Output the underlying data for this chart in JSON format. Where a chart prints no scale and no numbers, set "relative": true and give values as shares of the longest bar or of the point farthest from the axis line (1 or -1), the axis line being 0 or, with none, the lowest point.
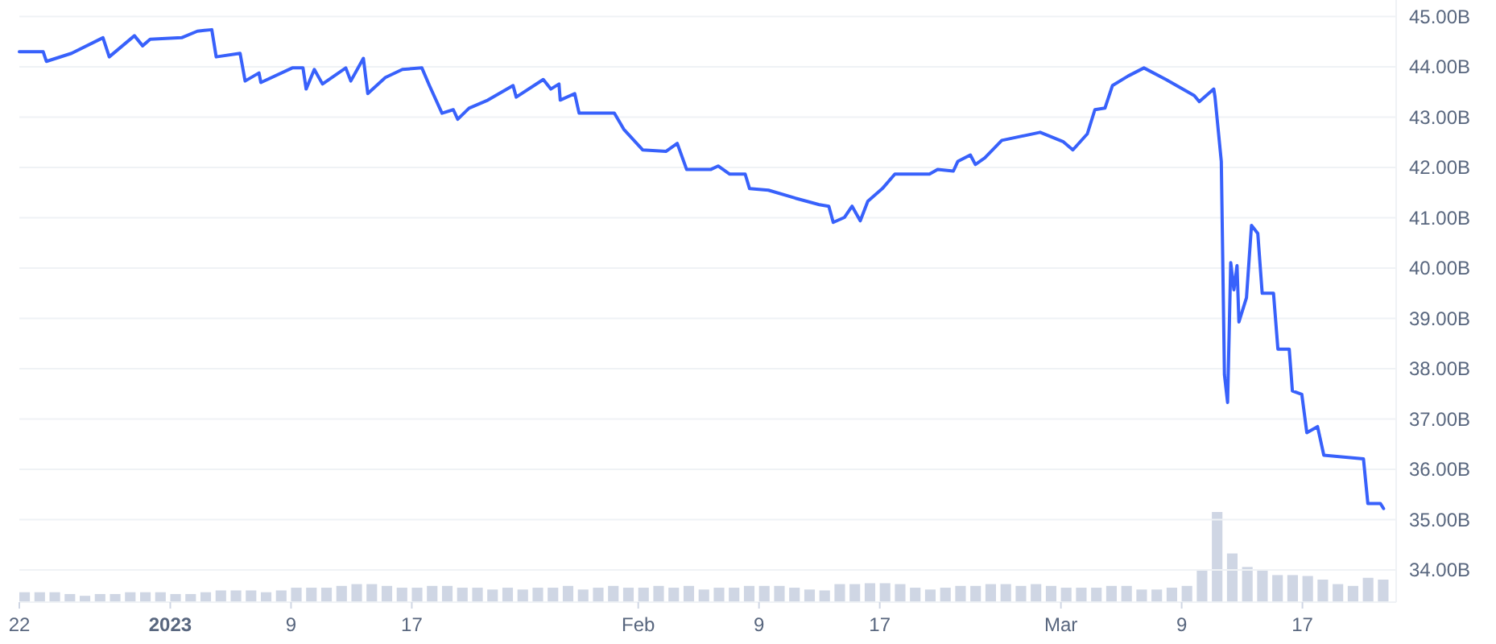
{
  "chart_data": [
    {
      "type": "line",
      "color": "#3861fb",
      "grid": "y",
      "tick_labels": "y",
      "xlim": [
        "2022-12-22T00:00",
        "2023-03-23T05:00"
      ],
      "ylim": [
        33.36,
        45.33
      ],
      "yticks": [
        {
          "value": 34,
          "label": "34.00B"
        },
        {
          "value": 35,
          "label": "35.00B"
        },
        {
          "value": 36,
          "label": "36.00B"
        },
        {
          "value": 37,
          "label": "37.00B"
        },
        {
          "value": 38,
          "label": "38.00B"
        },
        {
          "value": 39,
          "label": "39.00B"
        },
        {
          "value": 40,
          "label": "40.00B"
        },
        {
          "value": 41,
          "label": "41.00B"
        },
        {
          "value": 42,
          "label": "42.00B"
        },
        {
          "value": 43,
          "label": "43.00B"
        },
        {
          "value": 44,
          "label": "44.00B"
        },
        {
          "value": 45,
          "label": "45.00B"
        }
      ],
      "x": [
        "2022-12-22T00:00",
        "2022-12-23T14:00",
        "2022-12-23T19:00",
        "2022-12-25T11:00",
        "2022-12-27T13:00",
        "2022-12-27T23:00",
        "2022-12-29T15:00",
        "2022-12-30T04:00",
        "2022-12-30T16:00",
        "2023-01-01T18:00",
        "2023-01-02T19:00",
        "2023-01-03T18:00",
        "2023-01-04T01:00",
        "2023-01-05T15:00",
        "2023-01-05T23:00",
        "2023-01-06T21:00",
        "2023-01-07T00:00",
        "2023-01-09T02:00",
        "2023-01-09T19:00",
        "2023-01-10T00:00",
        "2023-01-10T13:00",
        "2023-01-11T02:00",
        "2023-01-12T15:00",
        "2023-01-12T23:00",
        "2023-01-13T19:00",
        "2023-01-14T02:00",
        "2023-01-15T06:00",
        "2023-01-16T09:00",
        "2023-01-17T16:00",
        "2023-01-18T04:00",
        "2023-01-19T00:00",
        "2023-01-19T18:00",
        "2023-01-20T01:00",
        "2023-01-20T19:00",
        "2023-01-22T01:00",
        "2023-01-23T17:00",
        "2023-01-23T22:00",
        "2023-01-25T17:00",
        "2023-01-26T05:00",
        "2023-01-26T18:00",
        "2023-01-26T20:00",
        "2023-01-27T19:00",
        "2023-01-28T02:00",
        "2023-01-30T10:00",
        "2023-01-31T01:00",
        "2023-02-01T07:00",
        "2023-02-02T20:00",
        "2023-02-03T14:00",
        "2023-02-04T05:00",
        "2023-02-05T19:00",
        "2023-02-06T07:00",
        "2023-02-07T01:00",
        "2023-02-08T02:00",
        "2023-02-08T09:00",
        "2023-02-09T15:00",
        "2023-02-11T10:00",
        "2023-02-13T00:00",
        "2023-02-13T15:00",
        "2023-02-13T22:00",
        "2023-02-14T16:00",
        "2023-02-15T04:00",
        "2023-02-15T17:00",
        "2023-02-16T05:00",
        "2023-02-17T04:00",
        "2023-02-18T00:00",
        "2023-02-20T07:00",
        "2023-02-20T20:00",
        "2023-02-21T21:00",
        "2023-02-22T04:00",
        "2023-02-23T00:00",
        "2023-02-23T08:00",
        "2023-02-23T23:00",
        "2023-02-25T02:00",
        "2023-02-27T15:00",
        "2023-03-01T04:00",
        "2023-03-01T19:00",
        "2023-03-02T18:00",
        "2023-03-03T06:00",
        "2023-03-03T22:00",
        "2023-03-04T10:00",
        "2023-03-05T11:00",
        "2023-03-06T12:00",
        "2023-03-07T23:00",
        "2023-03-09T20:00",
        "2023-03-10T04:00",
        "2023-03-11T03:00",
        "2023-03-11T05:00",
        "2023-03-11T15:00",
        "2023-03-11T20:00",
        "2023-03-12T01:00",
        "2023-03-12T06:00",
        "2023-03-12T11:00",
        "2023-03-12T16:00",
        "2023-03-12T19:00",
        "2023-03-13T07:00",
        "2023-03-13T15:00",
        "2023-03-14T01:00",
        "2023-03-14T08:00",
        "2023-03-15T02:00",
        "2023-03-15T09:00",
        "2023-03-16T03:00",
        "2023-03-16T08:00",
        "2023-03-16T23:00",
        "2023-03-17T07:00",
        "2023-03-18T00:00",
        "2023-03-18T10:00",
        "2023-03-21T01:00",
        "2023-03-21T08:00",
        "2023-03-22T04:00",
        "2023-03-22T09:00"
      ],
      "values": [
        44.3,
        44.3,
        44.11,
        44.27,
        44.58,
        44.2,
        44.62,
        44.42,
        44.55,
        44.58,
        44.71,
        44.74,
        44.2,
        44.27,
        43.72,
        43.88,
        43.69,
        43.98,
        43.98,
        43.56,
        43.95,
        43.66,
        43.98,
        43.72,
        44.17,
        43.47,
        43.79,
        43.95,
        43.98,
        43.63,
        43.08,
        43.15,
        42.96,
        43.18,
        43.34,
        43.63,
        43.4,
        43.75,
        43.56,
        43.66,
        43.34,
        43.47,
        43.08,
        43.08,
        42.76,
        42.35,
        42.32,
        42.48,
        41.96,
        41.96,
        42.03,
        41.87,
        41.87,
        41.58,
        41.55,
        41.39,
        41.26,
        41.23,
        40.91,
        41.01,
        41.23,
        40.94,
        41.33,
        41.58,
        41.87,
        41.87,
        41.96,
        41.93,
        42.12,
        42.25,
        42.06,
        42.19,
        42.54,
        42.7,
        42.51,
        42.35,
        42.67,
        43.15,
        43.18,
        43.63,
        43.82,
        43.98,
        43.75,
        43.43,
        43.31,
        43.56,
        43.4,
        42.12,
        37.88,
        37.33,
        40.11,
        39.57,
        40.05,
        38.93,
        39.41,
        40.85,
        40.69,
        39.5,
        39.5,
        38.39,
        38.39,
        37.56,
        37.49,
        36.73,
        36.85,
        36.28,
        36.21,
        35.32,
        35.32,
        35.22
      ]
    },
    {
      "type": "bar",
      "relative": true,
      "color": "#cfd6e4",
      "xlim": [
        "2022-12-22T00:00",
        "2023-03-23T05:00"
      ],
      "xticks": [
        {
          "value": "2022-12-22",
          "label": "22"
        },
        {
          "value": "2023-01-01",
          "label": "2023"
        },
        {
          "value": "2023-01-09",
          "label": "9"
        },
        {
          "value": "2023-01-17",
          "label": "17"
        },
        {
          "value": "2023-02-01",
          "label": "Feb"
        },
        {
          "value": "2023-02-09",
          "label": "9"
        },
        {
          "value": "2023-02-17",
          "label": "17"
        },
        {
          "value": "2023-03-01",
          "label": "Mar"
        },
        {
          "value": "2023-03-09",
          "label": "9"
        },
        {
          "value": "2023-03-17",
          "label": "17"
        }
      ],
      "x": [
        "2022-12-22",
        "2022-12-23",
        "2022-12-24",
        "2022-12-25",
        "2022-12-26",
        "2022-12-27",
        "2022-12-28",
        "2022-12-29",
        "2022-12-30",
        "2022-12-31",
        "2023-01-01",
        "2023-01-02",
        "2023-01-03",
        "2023-01-04",
        "2023-01-05",
        "2023-01-06",
        "2023-01-07",
        "2023-01-08",
        "2023-01-09",
        "2023-01-10",
        "2023-01-11",
        "2023-01-12",
        "2023-01-13",
        "2023-01-14",
        "2023-01-15",
        "2023-01-16",
        "2023-01-17",
        "2023-01-18",
        "2023-01-19",
        "2023-01-20",
        "2023-01-21",
        "2023-01-22",
        "2023-01-23",
        "2023-01-24",
        "2023-01-25",
        "2023-01-26",
        "2023-01-27",
        "2023-01-28",
        "2023-01-29",
        "2023-01-30",
        "2023-01-31",
        "2023-02-01",
        "2023-02-02",
        "2023-02-03",
        "2023-02-04",
        "2023-02-05",
        "2023-02-06",
        "2023-02-07",
        "2023-02-08",
        "2023-02-09",
        "2023-02-10",
        "2023-02-11",
        "2023-02-12",
        "2023-02-13",
        "2023-02-14",
        "2023-02-15",
        "2023-02-16",
        "2023-02-17",
        "2023-02-18",
        "2023-02-19",
        "2023-02-20",
        "2023-02-21",
        "2023-02-22",
        "2023-02-23",
        "2023-02-24",
        "2023-02-25",
        "2023-02-26",
        "2023-02-27",
        "2023-02-28",
        "2023-03-01",
        "2023-03-02",
        "2023-03-03",
        "2023-03-04",
        "2023-03-05",
        "2023-03-06",
        "2023-03-07",
        "2023-03-08",
        "2023-03-09",
        "2023-03-10",
        "2023-03-11",
        "2023-03-12",
        "2023-03-13",
        "2023-03-14",
        "2023-03-15",
        "2023-03-16",
        "2023-03-17",
        "2023-03-18",
        "2023-03-19",
        "2023-03-20",
        "2023-03-21",
        "2023-03-22"
      ],
      "values": [
        0.11,
        0.11,
        0.11,
        0.09,
        0.07,
        0.09,
        0.09,
        0.11,
        0.11,
        0.11,
        0.09,
        0.09,
        0.11,
        0.13,
        0.13,
        0.13,
        0.11,
        0.13,
        0.16,
        0.16,
        0.16,
        0.18,
        0.2,
        0.2,
        0.18,
        0.16,
        0.16,
        0.18,
        0.18,
        0.16,
        0.16,
        0.14,
        0.16,
        0.14,
        0.16,
        0.16,
        0.18,
        0.14,
        0.16,
        0.18,
        0.16,
        0.16,
        0.18,
        0.16,
        0.18,
        0.14,
        0.16,
        0.16,
        0.18,
        0.18,
        0.18,
        0.16,
        0.14,
        0.13,
        0.2,
        0.2,
        0.21,
        0.21,
        0.2,
        0.16,
        0.14,
        0.16,
        0.18,
        0.18,
        0.2,
        0.2,
        0.18,
        0.2,
        0.18,
        0.16,
        0.16,
        0.16,
        0.18,
        0.18,
        0.14,
        0.14,
        0.16,
        0.18,
        0.36,
        1,
        0.54,
        0.39,
        0.36,
        0.3,
        0.3,
        0.29,
        0.25,
        0.2,
        0.18,
        0.27,
        0.25
      ]
    }
  ]
}
